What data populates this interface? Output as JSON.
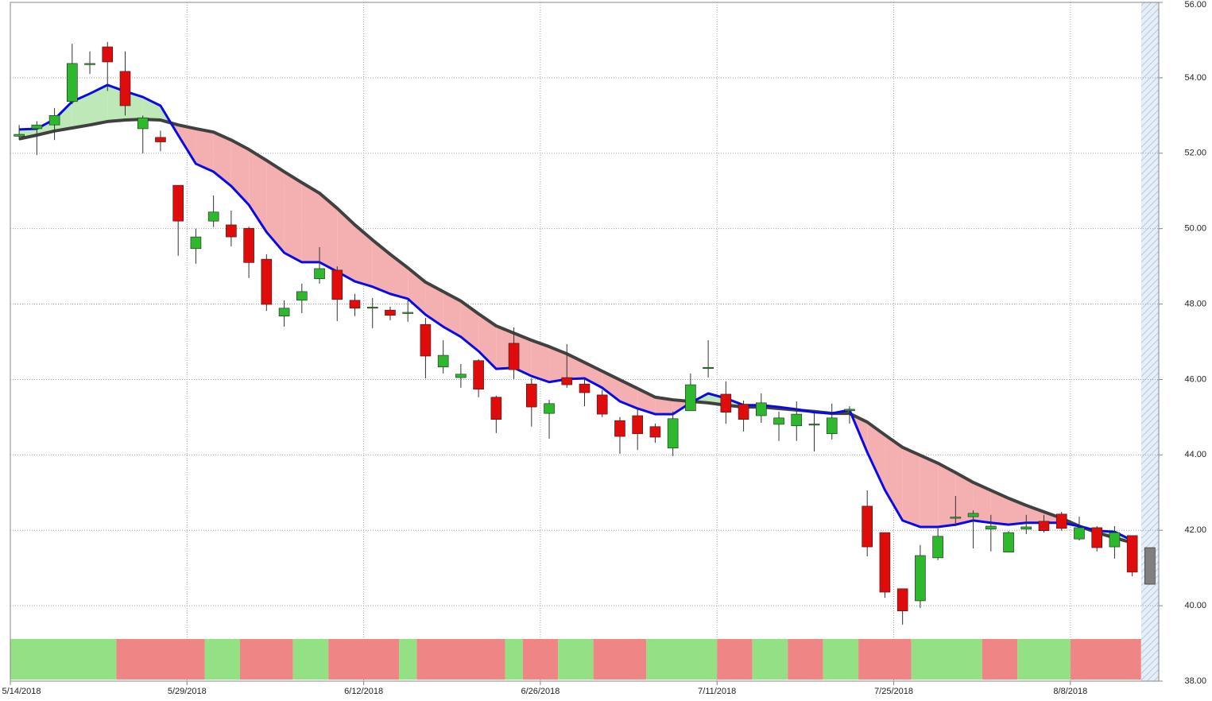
{
  "chart_data": {
    "type": "candlestick",
    "categories": [
      "5/14/2018",
      null,
      null,
      null,
      null,
      null,
      null,
      null,
      null,
      null,
      "5/29/2018",
      null,
      null,
      null,
      null,
      null,
      null,
      null,
      null,
      null,
      "6/12/2018",
      null,
      null,
      null,
      null,
      null,
      null,
      null,
      null,
      null,
      "6/26/2018",
      null,
      null,
      null,
      null,
      null,
      null,
      null,
      null,
      null,
      "7/11/2018",
      null,
      null,
      null,
      null,
      null,
      null,
      null,
      null,
      null,
      "7/25/2018",
      null,
      null,
      null,
      null,
      null,
      null,
      null,
      null,
      null,
      "8/8/2018",
      null,
      null,
      null,
      null
    ],
    "open": [
      52.45,
      52.65,
      52.75,
      53.37,
      54.35,
      54.82,
      54.17,
      52.65,
      52.42,
      51.15,
      49.47,
      50.2,
      50.1,
      50.01,
      49.19,
      47.68,
      48.1,
      48.67,
      48.9,
      48.1,
      47.9,
      47.84,
      47.78,
      47.46,
      46.33,
      46.05,
      46.5,
      45.53,
      46.96,
      45.88,
      45.1,
      46.05,
      45.88,
      45.59,
      44.91,
      45.04,
      44.75,
      44.18,
      45.17,
      46.3,
      45.61,
      45.34,
      45.04,
      44.81,
      44.77,
      44.8,
      44.56,
      45.17,
      42.64,
      41.94,
      40.45,
      40.13,
      41.27,
      42.33,
      42.36,
      42.03,
      41.42,
      42.03,
      42.24,
      42.43,
      41.77,
      42.07,
      41.56,
      41.86,
      41.54
    ],
    "high": [
      52.75,
      52.85,
      53.2,
      54.9,
      54.7,
      54.95,
      54.7,
      53.0,
      52.6,
      51.15,
      50.0,
      50.88,
      50.48,
      50.05,
      49.32,
      48.1,
      48.54,
      49.51,
      49.0,
      48.27,
      48.16,
      47.93,
      48.1,
      47.63,
      47.04,
      46.41,
      46.54,
      45.57,
      47.38,
      46.03,
      45.46,
      46.94,
      46.03,
      45.72,
      45.0,
      45.21,
      44.83,
      45.15,
      46.16,
      47.04,
      45.95,
      45.44,
      45.63,
      45.15,
      45.42,
      45.1,
      45.36,
      45.29,
      43.06,
      41.94,
      40.45,
      41.61,
      42.05,
      42.91,
      42.53,
      42.41,
      41.98,
      42.41,
      42.41,
      42.49,
      42.36,
      42.11,
      42.11,
      41.86,
      41.54
    ],
    "low": [
      52.35,
      51.95,
      52.35,
      53.3,
      54.1,
      53.65,
      53.0,
      52.0,
      52.05,
      49.28,
      49.07,
      50.04,
      49.53,
      48.69,
      47.82,
      47.4,
      47.76,
      48.54,
      47.55,
      47.68,
      47.36,
      47.57,
      47.53,
      46.03,
      46.16,
      45.78,
      45.53,
      44.58,
      46.01,
      44.75,
      44.43,
      45.78,
      45.29,
      45.0,
      44.03,
      44.13,
      44.32,
      43.97,
      45.17,
      46.05,
      44.83,
      44.62,
      44.85,
      44.37,
      44.37,
      44.09,
      44.41,
      44.83,
      41.31,
      40.21,
      39.5,
      39.94,
      41.21,
      42.11,
      41.52,
      41.44,
      41.42,
      41.9,
      41.94,
      41.99,
      41.73,
      41.44,
      41.25,
      40.78,
      40.57
    ],
    "close": [
      52.5,
      52.75,
      53.0,
      54.38,
      54.38,
      54.42,
      53.26,
      52.94,
      52.3,
      50.2,
      49.78,
      50.44,
      49.78,
      49.1,
      47.99,
      47.89,
      48.33,
      48.94,
      48.12,
      47.89,
      47.92,
      47.7,
      47.78,
      46.62,
      46.64,
      46.14,
      45.74,
      44.94,
      46.26,
      45.27,
      45.36,
      45.86,
      45.65,
      45.08,
      44.49,
      44.56,
      44.47,
      44.96,
      45.86,
      46.32,
      45.13,
      44.94,
      45.38,
      44.98,
      45.08,
      44.82,
      44.98,
      45.21,
      41.56,
      40.36,
      39.86,
      41.33,
      41.84,
      42.35,
      42.45,
      42.11,
      41.94,
      42.09,
      41.99,
      42.05,
      42.07,
      41.54,
      41.94,
      40.89,
      40.57
    ],
    "up_color": "#2db82d",
    "down_color": "#e00b0b",
    "last_color": "#808080",
    "series": [
      {
        "color": "#0a0ae6",
        "values": [
          52.63,
          52.65,
          52.9,
          53.37,
          53.58,
          53.81,
          53.64,
          53.49,
          53.26,
          52.48,
          51.72,
          51.51,
          51.13,
          50.63,
          49.91,
          49.36,
          49.11,
          49.11,
          48.86,
          48.6,
          48.46,
          48.27,
          48.14,
          47.72,
          47.4,
          47.13,
          46.75,
          46.28,
          46.31,
          46.09,
          45.93,
          46.01,
          46.03,
          45.78,
          45.42,
          45.23,
          45.08,
          45.08,
          45.38,
          45.63,
          45.5,
          45.32,
          45.32,
          45.27,
          45.21,
          45.13,
          45.1,
          45.19,
          44.07,
          43.07,
          42.26,
          42.09,
          42.09,
          42.15,
          42.26,
          42.2,
          42.15,
          42.2,
          42.2,
          42.2,
          42.11,
          41.99,
          41.96,
          41.73,
          null
        ]
      },
      {
        "color": "#404040",
        "values": [
          52.38,
          52.48,
          52.59,
          52.67,
          52.75,
          52.84,
          52.88,
          52.9,
          52.88,
          52.75,
          52.65,
          52.56,
          52.35,
          52.1,
          51.81,
          51.51,
          51.22,
          50.94,
          50.54,
          50.1,
          49.7,
          49.32,
          48.96,
          48.58,
          48.33,
          48.08,
          47.74,
          47.42,
          47.23,
          47.04,
          46.87,
          46.68,
          46.45,
          46.22,
          45.99,
          45.76,
          45.53,
          45.46,
          45.42,
          45.38,
          45.32,
          45.27,
          45.27,
          45.23,
          45.19,
          45.15,
          45.1,
          45.1,
          44.87,
          44.53,
          44.2,
          43.99,
          43.78,
          43.53,
          43.27,
          43.06,
          42.85,
          42.66,
          42.49,
          42.32,
          42.11,
          41.94,
          41.8,
          41.67,
          null
        ]
      }
    ],
    "fill_above_color": "#bfe8b8",
    "fill_below_color": "#f4b0b0",
    "signal": [
      {
        "color": "#93e085",
        "count": 6
      },
      {
        "color": "#f08585",
        "count": 5
      },
      {
        "color": "#93e085",
        "count": 2
      },
      {
        "color": "#f08585",
        "count": 3
      },
      {
        "color": "#93e085",
        "count": 2
      },
      {
        "color": "#f08585",
        "count": 4
      },
      {
        "color": "#93e085",
        "count": 1
      },
      {
        "color": "#f08585",
        "count": 5
      },
      {
        "color": "#93e085",
        "count": 1
      },
      {
        "color": "#f08585",
        "count": 2
      },
      {
        "color": "#93e085",
        "count": 2
      },
      {
        "color": "#f08585",
        "count": 3
      },
      {
        "color": "#93e085",
        "count": 4
      },
      {
        "color": "#f08585",
        "count": 2
      },
      {
        "color": "#93e085",
        "count": 2
      },
      {
        "color": "#f08585",
        "count": 2
      },
      {
        "color": "#93e085",
        "count": 2
      },
      {
        "color": "#f08585",
        "count": 3
      },
      {
        "color": "#93e085",
        "count": 4
      },
      {
        "color": "#f08585",
        "count": 2
      },
      {
        "color": "#93e085",
        "count": 3
      },
      {
        "color": "#f08585",
        "count": 4
      }
    ],
    "ylim": [
      38,
      56
    ],
    "yticks": [
      {
        "value": 38,
        "label": "38.00"
      },
      {
        "value": 40,
        "label": "40.00"
      },
      {
        "value": 42,
        "label": "42.00"
      },
      {
        "value": 44,
        "label": "44.00"
      },
      {
        "value": 46,
        "label": "46.00"
      },
      {
        "value": 48,
        "label": "48.00"
      },
      {
        "value": 50,
        "label": "50.00"
      },
      {
        "value": 52,
        "label": "52.00"
      },
      {
        "value": 54,
        "label": "54.00"
      },
      {
        "value": 56,
        "label": "56.00"
      }
    ],
    "grid": true
  }
}
